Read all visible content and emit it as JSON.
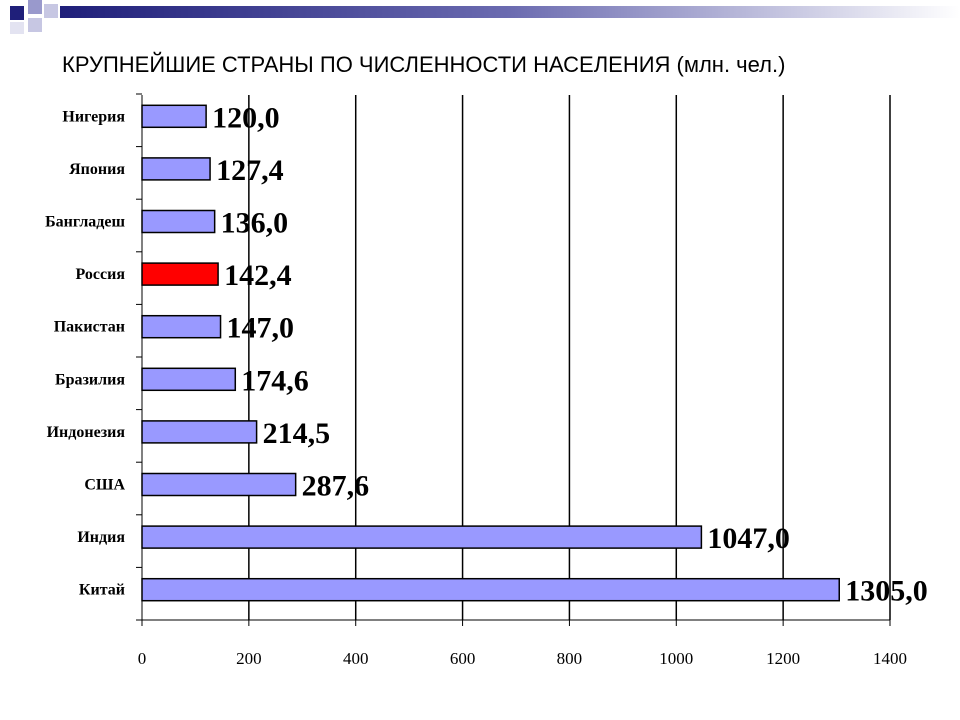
{
  "slide": {
    "title": "КРУПНЕЙШИЕ СТРАНЫ ПО ЧИСЛЕННОСТИ НАСЕЛЕНИЯ (млн. чел.)"
  },
  "colors": {
    "bar": "#9999ff",
    "highlight": "#ff0000",
    "accent_dark": "#1f1f7a",
    "accent_light": "#9999cc"
  },
  "chart_data": {
    "type": "bar",
    "orientation": "horizontal",
    "categories": [
      "Нигерия",
      "Япония",
      "Бангладеш",
      "Россия",
      "Пакистан",
      "Бразилия",
      "Индонезия",
      "США",
      "Индия",
      "Китай"
    ],
    "values": [
      120.0,
      127.4,
      136.0,
      142.4,
      147.0,
      174.6,
      214.5,
      287.6,
      1047.0,
      1305.0
    ],
    "data_labels": [
      "120,0",
      "127,4",
      "136,0",
      "142,4",
      "147,0",
      "174,6",
      "214,5",
      "287,6",
      "1047,0",
      "1305,0"
    ],
    "highlight_category": "Россия",
    "xlim": [
      0,
      1400
    ],
    "x_ticks": [
      0,
      200,
      400,
      600,
      800,
      1000,
      1200,
      1400
    ],
    "x_tick_labels": [
      "0",
      "200",
      "400",
      "600",
      "800",
      "1000",
      "1200",
      "1400"
    ],
    "grid": "vertical",
    "legend": "none"
  }
}
